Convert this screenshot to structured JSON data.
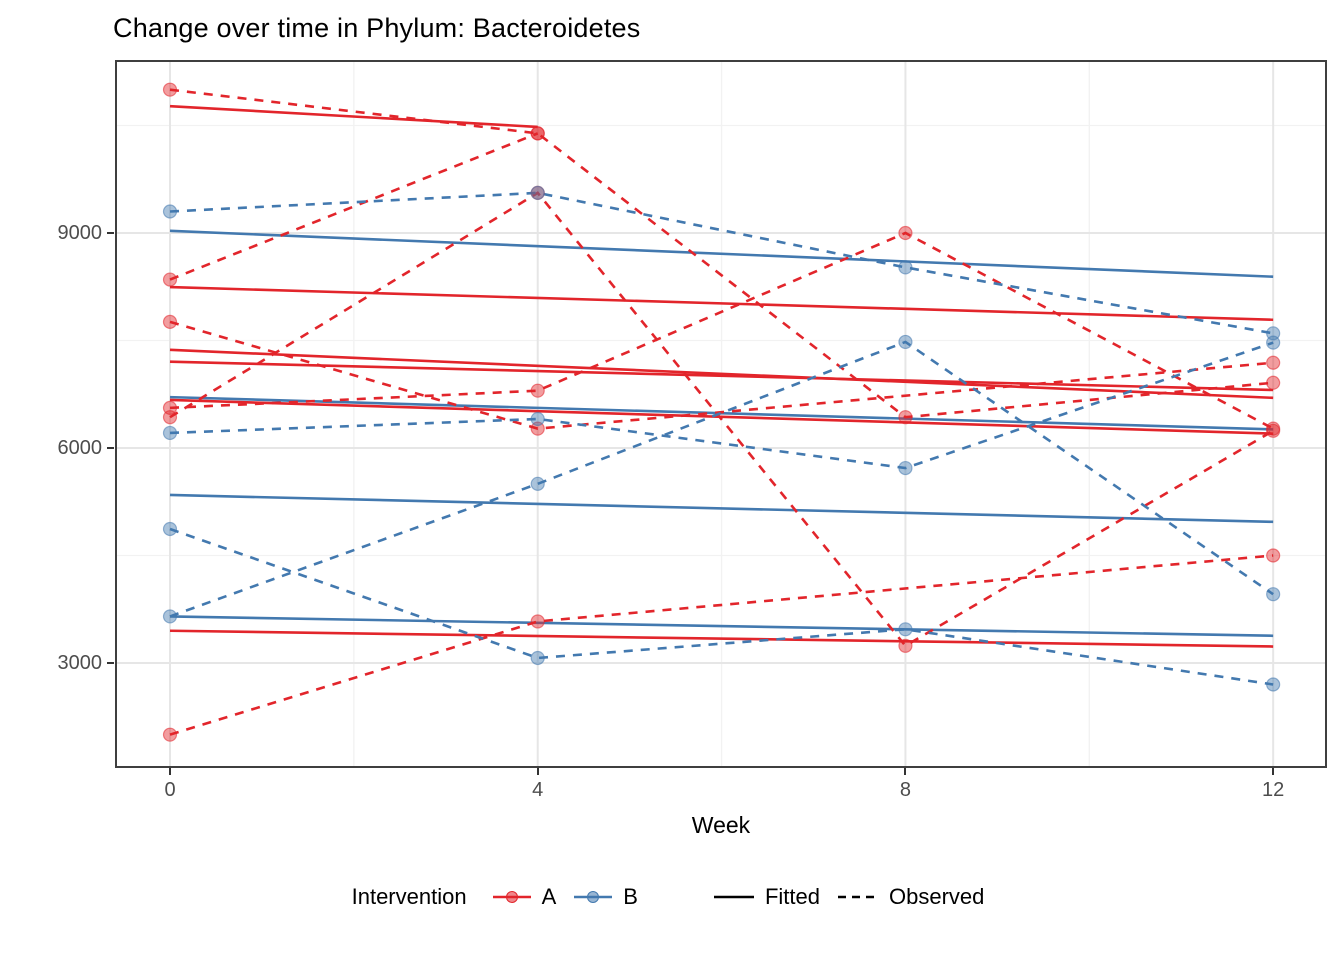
{
  "title": "Change over time in Phylum: Bacteroidetes",
  "axes": {
    "x": {
      "label": "Week",
      "ticks": [
        "0",
        "4",
        "8",
        "12"
      ],
      "major_weeks": [
        0,
        4,
        8,
        12
      ],
      "minor_weeks": [
        2,
        6,
        10
      ]
    },
    "y": {
      "ticks": [
        "3000",
        "6000",
        "9000"
      ],
      "major_values": [
        3000,
        6000,
        9000
      ],
      "minor_values": [
        4500,
        7500,
        10500
      ]
    }
  },
  "legend": {
    "title": "Intervention",
    "groups": [
      {
        "label": "A",
        "color_key": "red"
      },
      {
        "label": "B",
        "color_key": "blue"
      }
    ],
    "linetypes": [
      {
        "label": "Fitted",
        "style": "solid"
      },
      {
        "label": "Observed",
        "style": "dashed"
      }
    ]
  },
  "colors": {
    "red": "#E2252B",
    "blue": "#4379AF",
    "dot_alpha": 0.45,
    "grid_major": "#E6E6E6",
    "grid_minor": "#F2F2F2",
    "panel_border": "#3F3F3F",
    "tick": "#333333",
    "tick_label": "#4D4D4D"
  },
  "chart_data": {
    "type": "line",
    "title": "Change over time in Phylum: Bacteroidetes",
    "xlabel": "Week",
    "ylabel": "",
    "x_weeks": [
      0,
      4,
      8,
      12
    ],
    "ylim_shown": [
      1500,
      11400
    ],
    "grid": "on",
    "legend_position": "bottom",
    "series": [
      {
        "id": "A1",
        "group": "A",
        "observed": [
          11000,
          10390,
          6430,
          6910
        ],
        "fitted": {
          "start": 8245,
          "end": 7790,
          "end_week": 12
        }
      },
      {
        "id": "A2",
        "group": "A",
        "observed": [
          6430,
          9560,
          3240,
          6240
        ],
        "fitted": {
          "start": 6670,
          "end": 6200,
          "end_week": 12
        }
      },
      {
        "id": "A3",
        "group": "A",
        "observed": [
          8350,
          10390,
          null,
          null
        ],
        "fitted": {
          "start": 10770,
          "end": 10480,
          "end_week": 4
        }
      },
      {
        "id": "A4",
        "group": "A",
        "observed": [
          7760,
          6270,
          null,
          7190
        ],
        "fitted": {
          "start": 7205,
          "end": 6810,
          "end_week": 12
        }
      },
      {
        "id": "A5",
        "group": "A",
        "observed": [
          2000,
          3580,
          null,
          4500
        ],
        "fitted": {
          "start": 3450,
          "end": 3230,
          "end_week": 12
        }
      },
      {
        "id": "A6",
        "group": "A",
        "observed": [
          6560,
          6800,
          9000,
          6270
        ],
        "fitted": {
          "start": 7370,
          "end": 6700,
          "end_week": 12
        }
      },
      {
        "id": "B1",
        "group": "B",
        "observed": [
          9300,
          9560,
          8520,
          7600
        ],
        "fitted": {
          "start": 9030,
          "end": 8390,
          "end_week": 12
        }
      },
      {
        "id": "B2",
        "group": "B",
        "observed": [
          6210,
          6405,
          5720,
          7470
        ],
        "fitted": {
          "start": 6710,
          "end": 6260,
          "end_week": 12
        }
      },
      {
        "id": "B3",
        "group": "B",
        "observed": [
          4870,
          3070,
          3470,
          2700
        ],
        "fitted": {
          "start": 3650,
          "end": 3380,
          "end_week": 12
        }
      },
      {
        "id": "B4",
        "group": "B",
        "observed": [
          3650,
          5500,
          7480,
          3960
        ],
        "fitted": {
          "start": 5345,
          "end": 4970,
          "end_week": 12
        }
      }
    ]
  }
}
